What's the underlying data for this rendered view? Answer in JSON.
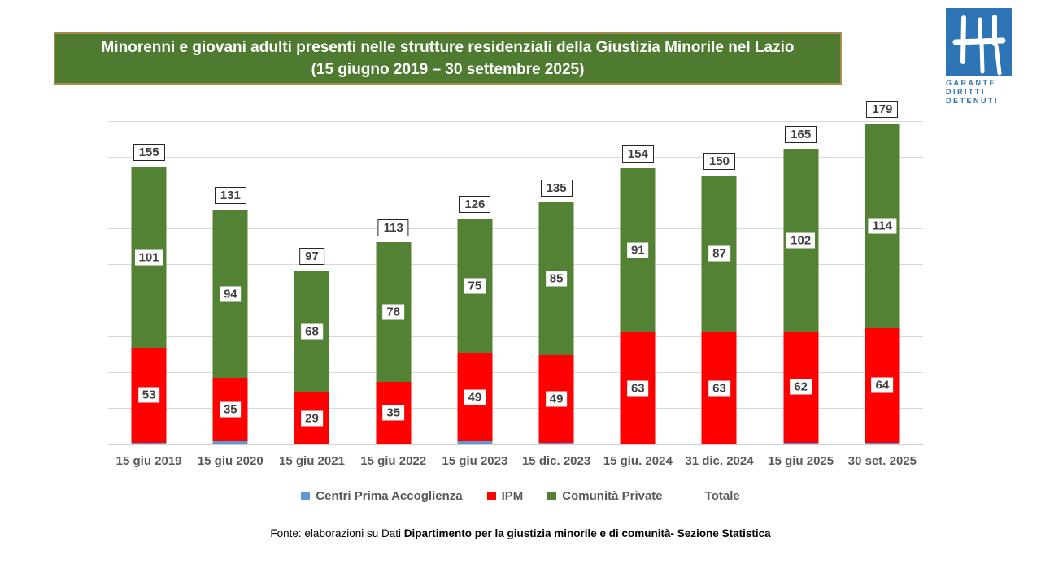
{
  "title": {
    "line1": "Minorenni e giovani adulti presenti nelle strutture residenziali della Giustizia Minorile nel Lazio",
    "line2": "(15 giugno 2019 – 30 settembre 2025)"
  },
  "logo": {
    "lines": [
      "GARANTE",
      "DIRITTI",
      "DETENUTI"
    ],
    "color": "#2e75b6"
  },
  "chart_data": {
    "type": "bar",
    "stacked": true,
    "title": "Minorenni e giovani adulti presenti nelle strutture residenziali della Giustizia Minorile nel Lazio (15 giugno 2019 – 30 settembre 2025)",
    "categories": [
      "15 giu 2019",
      "15 giu 2020",
      "15 giu 2021",
      "15 giu 2022",
      "15 giu 2023",
      "15 dic. 2023",
      "15 giu. 2024",
      "31 dic. 2024",
      "15 giu 2025",
      "30 set. 2025"
    ],
    "series": [
      {
        "name": "Centri Prima Accoglienza",
        "color": "#5b9bd5",
        "show_labels": false,
        "values": [
          1,
          2,
          0,
          0,
          2,
          1,
          0,
          0,
          1,
          1
        ]
      },
      {
        "name": "IPM",
        "color": "#ff0000",
        "show_labels": true,
        "values": [
          53,
          35,
          29,
          35,
          49,
          49,
          63,
          63,
          62,
          64
        ]
      },
      {
        "name": "Comunità Private",
        "color": "#548235",
        "show_labels": true,
        "values": [
          101,
          94,
          68,
          78,
          75,
          85,
          91,
          87,
          102,
          114
        ]
      }
    ],
    "totals": [
      155,
      131,
      97,
      113,
      126,
      135,
      154,
      150,
      165,
      179
    ],
    "totals_name": "Totale",
    "ylim": [
      0,
      180
    ],
    "grid_step": 20,
    "grid": true,
    "legend_position": "bottom",
    "legend": [
      {
        "label": "Centri Prima Accoglienza",
        "swatch": "#5b9bd5"
      },
      {
        "label": "IPM",
        "swatch": "#ff0000"
      },
      {
        "label": "Comunità Private",
        "swatch": "#548235"
      },
      {
        "label": "Totale",
        "swatch": null
      }
    ],
    "xlabel": "",
    "ylabel": ""
  },
  "footer": {
    "prefix": "Fonte:",
    "normal": " elaborazioni su Dati ",
    "bold": "Dipartimento per la giustizia minorile e di comunità- Sezione Statistica"
  }
}
